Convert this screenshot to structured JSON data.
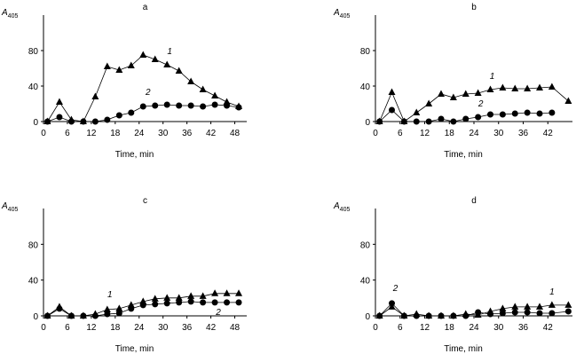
{
  "chart_data": [
    {
      "type": "line",
      "title": "a",
      "xlabel": "Time, min",
      "ylabel": "A",
      "ylabel_sub": "405",
      "x": [
        1,
        4,
        7,
        10,
        13,
        16,
        19,
        22,
        25,
        28,
        31,
        34,
        37,
        40,
        43,
        46,
        49
      ],
      "series": [
        {
          "name": "1",
          "color": "#000000",
          "marker": "triangle",
          "values": [
            0,
            22,
            2,
            0,
            28,
            62,
            58,
            63,
            75,
            70,
            64,
            57,
            45,
            36,
            29,
            22,
            17
          ]
        },
        {
          "name": "2",
          "color": "#000000",
          "marker": "circle",
          "values": [
            0,
            5,
            0,
            0,
            0,
            2,
            7,
            10,
            17,
            18,
            19,
            18,
            18,
            17,
            19,
            18,
            16
          ]
        }
      ],
      "xlim": [
        0,
        51
      ],
      "xticks": [
        0,
        6,
        12,
        18,
        24,
        30,
        36,
        42,
        48
      ],
      "ylim": [
        0,
        120
      ],
      "yticks": [
        0,
        40,
        80
      ]
    },
    {
      "type": "line",
      "title": "b",
      "xlabel": "Time, min",
      "ylabel": "A",
      "ylabel_sub": "405",
      "x": [
        1,
        4,
        7,
        10,
        13,
        16,
        19,
        22,
        25,
        28,
        31,
        34,
        37,
        40,
        43,
        47
      ],
      "series": [
        {
          "name": "1",
          "color": "#000000",
          "marker": "triangle",
          "values": [
            0,
            33,
            0,
            10,
            20,
            31,
            27,
            31,
            32,
            36,
            38,
            37,
            37,
            38,
            39,
            23
          ]
        },
        {
          "name": "2",
          "color": "#000000",
          "marker": "circle",
          "values": [
            0,
            13,
            0,
            0,
            0,
            3,
            0,
            3,
            5,
            8,
            8,
            9,
            10,
            9,
            10,
            null
          ]
        }
      ],
      "xlim": [
        0,
        48
      ],
      "xticks": [
        0,
        6,
        12,
        18,
        24,
        30,
        36,
        42
      ],
      "ylim": [
        0,
        120
      ],
      "yticks": [
        0,
        40,
        80
      ]
    },
    {
      "type": "line",
      "title": "c",
      "xlabel": "Time, min",
      "ylabel": "A",
      "ylabel_sub": "405",
      "x": [
        1,
        4,
        7,
        10,
        13,
        16,
        19,
        22,
        25,
        28,
        31,
        34,
        37,
        40,
        43,
        46,
        49
      ],
      "series": [
        {
          "name": "1",
          "color": "#000000",
          "marker": "triangle",
          "values": [
            0,
            10,
            0,
            0,
            2,
            7,
            8,
            12,
            16,
            19,
            20,
            20,
            22,
            22,
            25,
            25,
            25
          ]
        },
        {
          "name": "2",
          "color": "#000000",
          "marker": "circle",
          "values": [
            0,
            8,
            0,
            0,
            0,
            2,
            3,
            8,
            12,
            13,
            14,
            15,
            16,
            15,
            15,
            15,
            15
          ]
        }
      ],
      "xlim": [
        0,
        51
      ],
      "xticks": [
        0,
        6,
        12,
        18,
        24,
        30,
        36,
        42,
        48
      ],
      "ylim": [
        0,
        120
      ],
      "yticks": [
        0,
        40,
        80
      ]
    },
    {
      "type": "line",
      "title": "d",
      "xlabel": "Time, min",
      "ylabel": "A",
      "ylabel_sub": "405",
      "x": [
        1,
        4,
        7,
        10,
        13,
        16,
        19,
        22,
        25,
        28,
        31,
        34,
        37,
        40,
        43,
        47
      ],
      "series": [
        {
          "name": "1",
          "color": "#000000",
          "marker": "triangle",
          "values": [
            0,
            10,
            0,
            2,
            0,
            0,
            0,
            2,
            1,
            5,
            8,
            10,
            10,
            10,
            12,
            12
          ]
        },
        {
          "name": "2",
          "color": "#000000",
          "marker": "circle",
          "values": [
            0,
            14,
            0,
            0,
            0,
            0,
            0,
            0,
            4,
            2,
            3,
            4,
            4,
            3,
            3,
            5
          ]
        }
      ],
      "xlim": [
        0,
        48
      ],
      "xticks": [
        0,
        6,
        12,
        18,
        24,
        30,
        36,
        42
      ],
      "ylim": [
        0,
        120
      ],
      "yticks": [
        0,
        40,
        80
      ]
    }
  ]
}
